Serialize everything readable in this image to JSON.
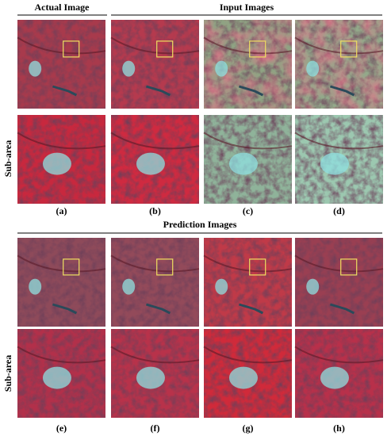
{
  "headers": {
    "actual": "Actual Image",
    "input": "Input Images",
    "prediction": "Prediction Images"
  },
  "row_labels": [
    "Sub-area",
    "Sub-area"
  ],
  "panels": [
    "(a)",
    "(b)",
    "(c)",
    "(d)",
    "(e)",
    "(f)",
    "(g)",
    "(h)"
  ]
}
